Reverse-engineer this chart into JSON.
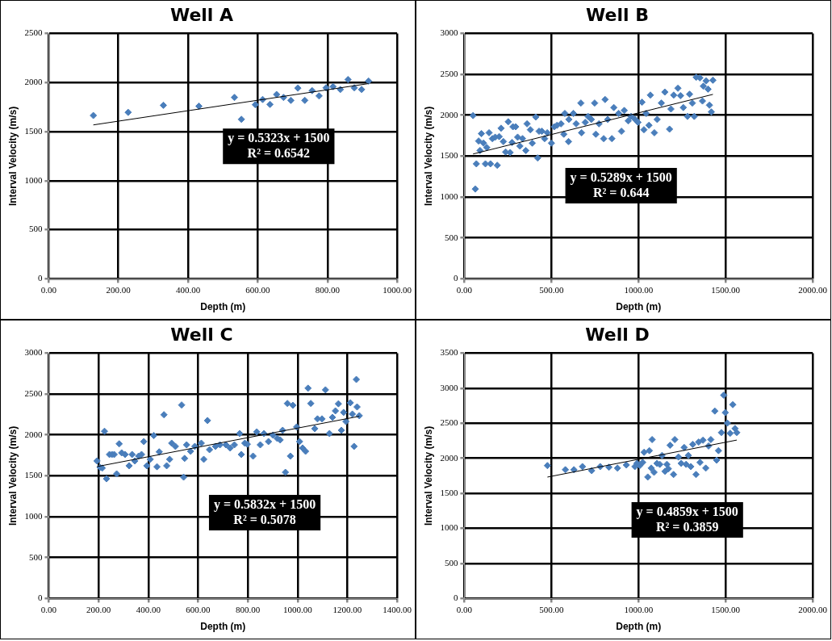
{
  "chart_data": [
    {
      "type": "scatter",
      "title": "Well A",
      "xlabel": "Depth (m)",
      "ylabel": "Interval Velocity (m/s)",
      "marker": "diamond",
      "grid": true,
      "legend": false,
      "xlim": [
        0,
        1000
      ],
      "xticks": [
        {
          "value": 0,
          "label": "0.00"
        },
        {
          "value": 200,
          "label": "200.00"
        },
        {
          "value": 400,
          "label": "400.00"
        },
        {
          "value": 600,
          "label": "600.00"
        },
        {
          "value": 800,
          "label": "800.00"
        },
        {
          "value": 1000,
          "label": "1000.00"
        }
      ],
      "ylim": [
        0,
        2500
      ],
      "yticks": [
        0,
        500,
        1000,
        1500,
        2000,
        2500
      ],
      "annotations": [
        "y = 0.5323x + 1500",
        "R² = 0.6542"
      ],
      "series": [
        {
          "color": "#4a7ebb",
          "x": [
            128,
            228,
            329,
            431,
            533,
            553,
            593,
            614,
            635,
            654,
            674,
            695,
            715,
            735,
            756,
            776,
            796,
            816,
            837,
            859,
            877,
            898,
            918
          ],
          "values": [
            1664,
            1696,
            1768,
            1759,
            1848,
            1625,
            1774,
            1827,
            1777,
            1878,
            1848,
            1818,
            1943,
            1818,
            1917,
            1863,
            1946,
            1958,
            1929,
            2030,
            1946,
            1929,
            2015
          ]
        },
        {
          "type": "line",
          "marker": "none",
          "color": "#000000",
          "x": [
            128,
            918
          ],
          "values": [
            1568,
            1989
          ]
        }
      ]
    },
    {
      "type": "scatter",
      "title": "Well B",
      "xlabel": "Depth (m)",
      "ylabel": "Interval Velocity (m/s)",
      "marker": "diamond",
      "grid": true,
      "legend": false,
      "xlim": [
        0,
        2000
      ],
      "xticks": [
        {
          "value": 0,
          "label": "0.00"
        },
        {
          "value": 500,
          "label": "500.00"
        },
        {
          "value": 1000,
          "label": "1000.00"
        },
        {
          "value": 1500,
          "label": "1500.00"
        },
        {
          "value": 2000,
          "label": "2000.00"
        }
      ],
      "ylim": [
        0,
        3000
      ],
      "yticks": [
        0,
        500,
        1000,
        1500,
        2000,
        2500,
        3000
      ],
      "annotations": [
        "y = 0.5289x + 1500",
        "R² = 0.644"
      ],
      "series": [
        {
          "color": "#4a7ebb",
          "x": [
            50,
            69,
            63,
            82,
            98,
            90,
            110,
            121,
            142,
            150,
            129,
            161,
            189,
            177,
            200,
            211,
            224,
            237,
            252,
            263,
            274,
            279,
            295,
            306,
            319,
            334,
            353,
            360,
            379,
            390,
            410,
            421,
            429,
            445,
            461,
            476,
            500,
            516,
            532,
            555,
            571,
            577,
            598,
            600,
            626,
            642,
            669,
            673,
            694,
            710,
            729,
            748,
            755,
            773,
            800,
            808,
            823,
            847,
            858,
            886,
            902,
            918,
            941,
            957,
            981,
            997,
            1020,
            1031,
            1044,
            1060,
            1068,
            1091,
            1107,
            1131,
            1151,
            1178,
            1186,
            1202,
            1226,
            1241,
            1257,
            1281,
            1293,
            1309,
            1320,
            1331,
            1352,
            1367,
            1372,
            1388,
            1399,
            1407,
            1418,
            1427
          ],
          "values": [
            1996,
            1406,
            1098,
            1685,
            1775,
            1569,
            1659,
            1406,
            1786,
            1406,
            1605,
            1714,
            1388,
            1732,
            1739,
            1841,
            1678,
            1551,
            1920,
            1544,
            1667,
            1859,
            1859,
            1732,
            1623,
            1714,
            1569,
            1895,
            1823,
            1659,
            1978,
            1478,
            1804,
            1804,
            1714,
            1786,
            1659,
            1859,
            1877,
            1895,
            1768,
            2022,
            1678,
            1949,
            2022,
            1895,
            2149,
            1786,
            1913,
            1986,
            1949,
            2149,
            1768,
            1895,
            1714,
            2192,
            1949,
            1714,
            2094,
            2022,
            1804,
            2058,
            1931,
            1986,
            1949,
            1913,
            2159,
            1823,
            2022,
            1877,
            2246,
            1786,
            1949,
            2149,
            2283,
            1830,
            2076,
            2246,
            2330,
            2239,
            2094,
            1986,
            2257,
            2149,
            1986,
            2464,
            2457,
            2174,
            2355,
            2420,
            2319,
            2123,
            2040,
            2428
          ]
        },
        {
          "type": "line",
          "marker": "none",
          "color": "#000000",
          "x": [
            50,
            1427
          ],
          "values": [
            1526,
            2255
          ]
        }
      ]
    },
    {
      "type": "scatter",
      "title": "Well C",
      "xlabel": "Depth (m)",
      "ylabel": "Interval Velocity (m/s)",
      "marker": "diamond",
      "grid": true,
      "legend": false,
      "xlim": [
        0,
        1400
      ],
      "xticks": [
        {
          "value": 0,
          "label": "0.00"
        },
        {
          "value": 200,
          "label": "200.00"
        },
        {
          "value": 400,
          "label": "400.00"
        },
        {
          "value": 600,
          "label": "600.00"
        },
        {
          "value": 800,
          "label": "800.00"
        },
        {
          "value": 1000,
          "label": "1000.00"
        },
        {
          "value": 1200,
          "label": "1200.00"
        },
        {
          "value": 1400,
          "label": "1400.00"
        }
      ],
      "ylim": [
        0,
        3000
      ],
      "yticks": [
        0,
        500,
        1000,
        1500,
        2000,
        2500,
        3000
      ],
      "annotations": [
        "y = 0.5832x + 1500",
        "R² = 0.5078"
      ],
      "series": [
        {
          "color": "#4a7ebb",
          "x": [
            194,
            206,
            215,
            224,
            232,
            244,
            254,
            263,
            273,
            283,
            293,
            307,
            323,
            335,
            346,
            361,
            373,
            382,
            394,
            408,
            422,
            435,
            444,
            463,
            474,
            486,
            494,
            509,
            534,
            542,
            546,
            554,
            570,
            587,
            613,
            623,
            638,
            646,
            670,
            688,
            712,
            729,
            746,
            767,
            774,
            788,
            798,
            821,
            836,
            850,
            865,
            883,
            901,
            918,
            930,
            940,
            951,
            959,
            971,
            981,
            996,
            1008,
            1020,
            1032,
            1042,
            1053,
            1069,
            1080,
            1098,
            1112,
            1128,
            1140,
            1152,
            1164,
            1176,
            1185,
            1194,
            1212,
            1220,
            1227,
            1236,
            1239,
            1248
          ],
          "values": [
            1682,
            1603,
            1595,
            2045,
            1464,
            1761,
            1761,
            1761,
            1524,
            1891,
            1781,
            1761,
            1623,
            1761,
            1682,
            1741,
            1761,
            1919,
            1623,
            1702,
            1992,
            1611,
            1793,
            2247,
            1623,
            1702,
            1899,
            1860,
            2366,
            1484,
            1713,
            1879,
            1800,
            1860,
            1899,
            1702,
            2176,
            1820,
            1860,
            1879,
            1879,
            1840,
            1879,
            2017,
            1761,
            1899,
            1887,
            1741,
            2037,
            1879,
            2017,
            1919,
            1998,
            1958,
            1939,
            2057,
            1543,
            2385,
            1741,
            2362,
            2097,
            1919,
            1840,
            1800,
            2571,
            2385,
            2077,
            2196,
            2196,
            2551,
            2017,
            2215,
            2294,
            2381,
            2057,
            2275,
            2164,
            2393,
            2255,
            1860,
            2678,
            2342,
            2235
          ]
        },
        {
          "type": "line",
          "marker": "none",
          "color": "#000000",
          "x": [
            194,
            1248
          ],
          "values": [
            1613,
            2228
          ]
        }
      ]
    },
    {
      "type": "scatter",
      "title": "Well D",
      "xlabel": "Depth (m)",
      "ylabel": "Interval Velocity (m/s)",
      "marker": "diamond",
      "grid": true,
      "legend": false,
      "xlim": [
        0,
        2000
      ],
      "xticks": [
        {
          "value": 0,
          "label": "0.00"
        },
        {
          "value": 500,
          "label": "500.00"
        },
        {
          "value": 1000,
          "label": "1000.00"
        },
        {
          "value": 1500,
          "label": "1500.00"
        },
        {
          "value": 2000,
          "label": "2000.00"
        }
      ],
      "ylim": [
        0,
        3500
      ],
      "yticks": [
        0,
        500,
        1000,
        1500,
        2000,
        2500,
        3000,
        3500
      ],
      "annotations": [
        "y = 0.4859x + 1500",
        "R² = 0.3859"
      ],
      "series": [
        {
          "color": "#4a7ebb",
          "x": [
            477,
            580,
            629,
            678,
            731,
            780,
            830,
            879,
            930,
            979,
            991,
            1007,
            1024,
            1032,
            1053,
            1062,
            1073,
            1078,
            1089,
            1106,
            1122,
            1135,
            1152,
            1163,
            1171,
            1181,
            1201,
            1208,
            1229,
            1245,
            1262,
            1273,
            1286,
            1300,
            1311,
            1330,
            1345,
            1353,
            1370,
            1386,
            1402,
            1415,
            1438,
            1448,
            1459,
            1476,
            1489,
            1498,
            1510,
            1526,
            1541,
            1554,
            1564
          ],
          "values": [
            1896,
            1837,
            1837,
            1882,
            1824,
            1882,
            1873,
            1860,
            1905,
            1882,
            1928,
            1896,
            1941,
            2086,
            1733,
            2109,
            1860,
            2267,
            1801,
            1928,
            1914,
            2041,
            1814,
            1914,
            1851,
            2186,
            1769,
            2267,
            2018,
            1928,
            2154,
            1914,
            2041,
            1882,
            2199,
            1769,
            2231,
            1941,
            2258,
            1860,
            2176,
            2267,
            2674,
            1973,
            2109,
            2367,
            2900,
            2652,
            2502,
            2357,
            2765,
            2425,
            2367
          ]
        },
        {
          "type": "line",
          "marker": "none",
          "color": "#000000",
          "x": [
            477,
            1564
          ],
          "values": [
            1732,
            2260
          ]
        }
      ]
    }
  ]
}
